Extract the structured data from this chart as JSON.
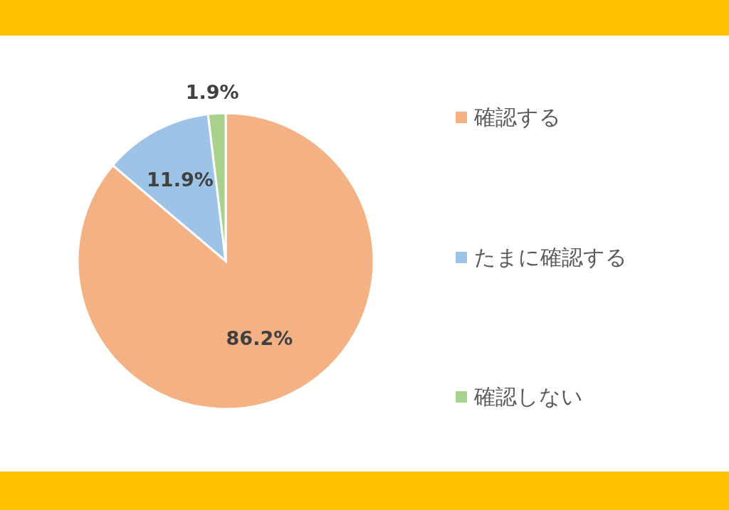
{
  "chart_data": {
    "type": "pie",
    "categories": [
      "確認する",
      "たまに確認する",
      "確認しない"
    ],
    "values": [
      86.2,
      11.9,
      1.9
    ],
    "colors": [
      "#f4b183",
      "#9dc3e6",
      "#a9d18e"
    ],
    "value_labels": [
      "86.2%",
      "11.9%",
      "1.9%"
    ],
    "legend": "right"
  }
}
